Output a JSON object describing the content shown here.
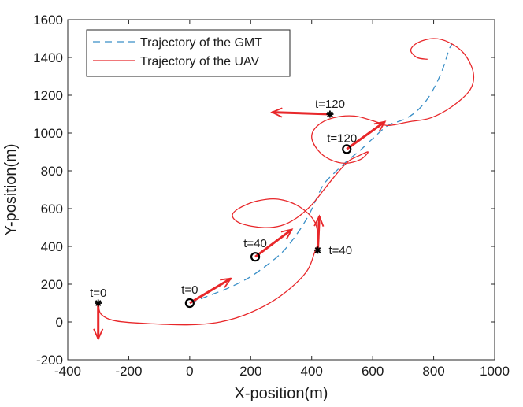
{
  "chart_data": {
    "type": "line",
    "title": "",
    "xlabel": "X-position(m)",
    "ylabel": "Y-position(m)",
    "xlim": [
      -400,
      1000
    ],
    "ylim": [
      -200,
      1600
    ],
    "xticks": [
      -400,
      -200,
      0,
      200,
      400,
      600,
      800,
      1000
    ],
    "yticks": [
      -200,
      0,
      200,
      400,
      600,
      800,
      1000,
      1200,
      1400,
      1600
    ],
    "xtick_labels": [
      "-400",
      "-200",
      "0",
      "200",
      "400",
      "600",
      "800",
      "1000"
    ],
    "ytick_labels": [
      "-200",
      "0",
      "200",
      "400",
      "600",
      "800",
      "1000",
      "1200",
      "1400",
      "1600"
    ],
    "grid": false,
    "legend_position": "top-left",
    "series": [
      {
        "name": "Trajectory of the GMT",
        "style": "dashed",
        "color": "#3a8fc7",
        "points": [
          [
            0,
            100
          ],
          [
            40,
            125
          ],
          [
            80,
            150
          ],
          [
            120,
            175
          ],
          [
            160,
            205
          ],
          [
            200,
            240
          ],
          [
            240,
            285
          ],
          [
            280,
            335
          ],
          [
            310,
            380
          ],
          [
            340,
            440
          ],
          [
            370,
            510
          ],
          [
            395,
            580
          ],
          [
            415,
            650
          ],
          [
            440,
            730
          ],
          [
            475,
            790
          ],
          [
            515,
            850
          ],
          [
            560,
            910
          ],
          [
            600,
            970
          ],
          [
            650,
            1040
          ],
          [
            700,
            1070
          ],
          [
            740,
            1110
          ],
          [
            775,
            1170
          ],
          [
            805,
            1250
          ],
          [
            830,
            1340
          ],
          [
            850,
            1440
          ],
          [
            860,
            1470
          ]
        ]
      },
      {
        "name": "Trajectory of the UAV",
        "style": "solid",
        "color": "#e8272a",
        "points": [
          [
            -300,
            100
          ],
          [
            -290,
            40
          ],
          [
            -240,
            5
          ],
          [
            -120,
            -10
          ],
          [
            0,
            -15
          ],
          [
            100,
            0
          ],
          [
            200,
            50
          ],
          [
            300,
            140
          ],
          [
            380,
            260
          ],
          [
            410,
            370
          ],
          [
            420,
            430
          ],
          [
            410,
            530
          ],
          [
            360,
            610
          ],
          [
            290,
            650
          ],
          [
            220,
            640
          ],
          [
            160,
            600
          ],
          [
            140,
            560
          ],
          [
            170,
            520
          ],
          [
            240,
            500
          ],
          [
            300,
            510
          ],
          [
            350,
            550
          ],
          [
            400,
            620
          ],
          [
            440,
            700
          ],
          [
            480,
            780
          ],
          [
            520,
            850
          ],
          [
            555,
            880
          ],
          [
            585,
            900
          ],
          [
            560,
            860
          ],
          [
            510,
            840
          ],
          [
            460,
            860
          ],
          [
            420,
            910
          ],
          [
            400,
            980
          ],
          [
            420,
            1040
          ],
          [
            470,
            1080
          ],
          [
            540,
            1090
          ],
          [
            610,
            1060
          ],
          [
            650,
            1040
          ],
          [
            720,
            1060
          ],
          [
            790,
            1080
          ],
          [
            860,
            1140
          ],
          [
            920,
            1230
          ],
          [
            930,
            1320
          ],
          [
            900,
            1420
          ],
          [
            850,
            1480
          ],
          [
            800,
            1500
          ],
          [
            750,
            1480
          ],
          [
            725,
            1440
          ],
          [
            745,
            1400
          ],
          [
            780,
            1390
          ]
        ]
      }
    ],
    "annotations": [
      {
        "text": "t=0",
        "point": [
          -300,
          100
        ],
        "marker": "star",
        "arrow_to": [
          -300,
          -90
        ]
      },
      {
        "text": "t=0",
        "point": [
          0,
          100
        ],
        "marker": "circle",
        "arrow_to": [
          135,
          230
        ]
      },
      {
        "text": "t=40",
        "point": [
          215,
          345
        ],
        "marker": "circle",
        "arrow_to": [
          335,
          490
        ]
      },
      {
        "text": "t=40",
        "point": [
          420,
          380
        ],
        "marker": "star",
        "arrow_to": [
          425,
          560
        ]
      },
      {
        "text": "t=120",
        "point": [
          460,
          1100
        ],
        "marker": "star",
        "arrow_to": [
          270,
          1110
        ]
      },
      {
        "text": "t=120",
        "point": [
          515,
          915
        ],
        "marker": "circle",
        "arrow_to": [
          640,
          1060
        ]
      }
    ]
  }
}
